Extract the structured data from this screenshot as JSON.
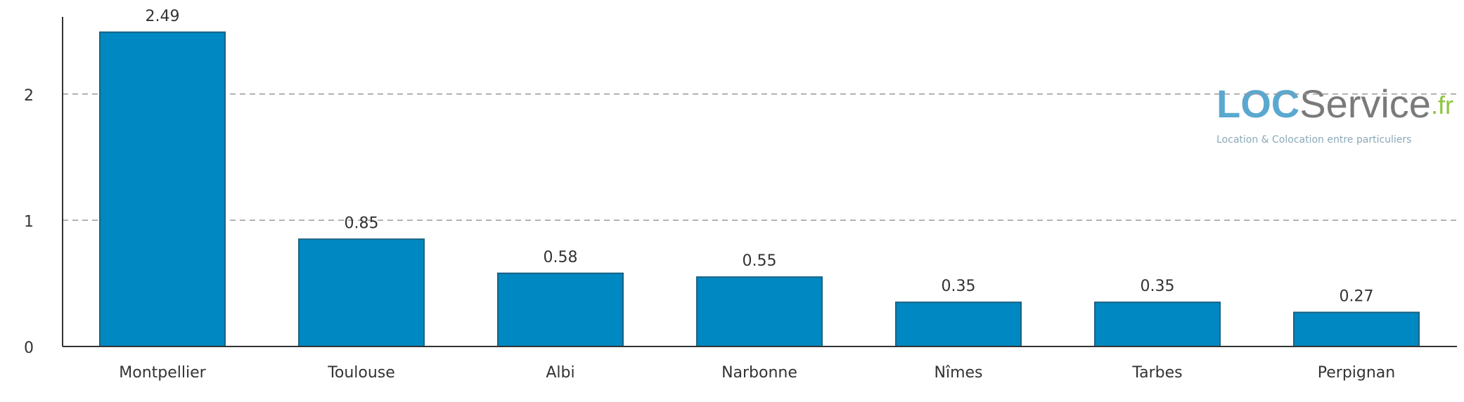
{
  "chart_data": {
    "type": "bar",
    "categories": [
      "Montpellier",
      "Toulouse",
      "Albi",
      "Narbonne",
      "Nîmes",
      "Tarbes",
      "Perpignan"
    ],
    "values": [
      2.49,
      0.85,
      0.58,
      0.55,
      0.35,
      0.35,
      0.27
    ],
    "color": "#0088c2",
    "ylim": [
      0,
      2.6
    ],
    "yticks": [
      0,
      1,
      2
    ],
    "grid": true
  },
  "logo": {
    "parts": [
      "LOC",
      "Service",
      ".fr"
    ],
    "tagline": "Location & Colocation entre particuliers"
  }
}
